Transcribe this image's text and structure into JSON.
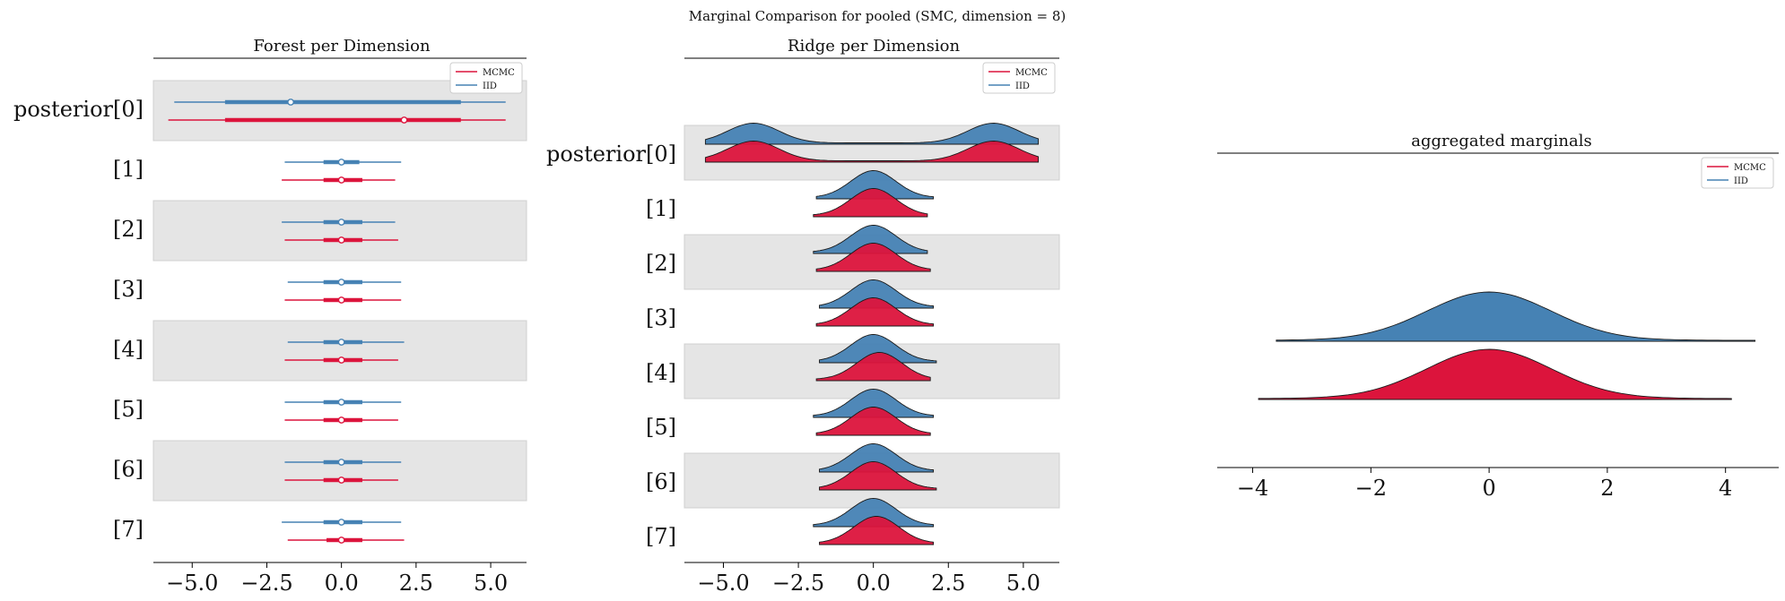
{
  "figure": {
    "suptitle": "Marginal Comparison for pooled (SMC, dimension = 8)"
  },
  "colors": {
    "mcmc": "#dc143c",
    "iid": "#4682b4",
    "band": "#e5e5e5"
  },
  "legend": {
    "mcmc_label": "MCMC",
    "iid_label": "IID"
  },
  "chart_data": [
    {
      "type": "forest",
      "title": "Forest per Dimension",
      "xlabel": "",
      "ylabel": "",
      "xlim": [
        -6.3,
        6.2
      ],
      "xticks": [
        -5.0,
        -2.5,
        0.0,
        2.5,
        5.0
      ],
      "xtick_labels": [
        "−5.0",
        "−2.5",
        "0.0",
        "2.5",
        "5.0"
      ],
      "legend_position": "top-right",
      "rows": [
        "posterior[0]",
        "[1]",
        "[2]",
        "[3]",
        "[4]",
        "[5]",
        "[6]",
        "[7]"
      ],
      "series": [
        {
          "name": "MCMC",
          "intervals": [
            {
              "hdi_low": -5.8,
              "hdi_high": 5.5,
              "iqr_low": -3.9,
              "iqr_high": 4.0,
              "point": 2.1
            },
            {
              "hdi_low": -2.0,
              "hdi_high": 1.8,
              "iqr_low": -0.6,
              "iqr_high": 0.7,
              "point": 0.0
            },
            {
              "hdi_low": -1.9,
              "hdi_high": 1.9,
              "iqr_low": -0.6,
              "iqr_high": 0.7,
              "point": 0.0
            },
            {
              "hdi_low": -1.9,
              "hdi_high": 2.0,
              "iqr_low": -0.6,
              "iqr_high": 0.7,
              "point": 0.0
            },
            {
              "hdi_low": -1.9,
              "hdi_high": 1.9,
              "iqr_low": -0.6,
              "iqr_high": 0.7,
              "point": 0.0
            },
            {
              "hdi_low": -1.9,
              "hdi_high": 1.9,
              "iqr_low": -0.6,
              "iqr_high": 0.7,
              "point": 0.0
            },
            {
              "hdi_low": -1.9,
              "hdi_high": 1.9,
              "iqr_low": -0.6,
              "iqr_high": 0.7,
              "point": 0.0
            },
            {
              "hdi_low": -1.8,
              "hdi_high": 2.1,
              "iqr_low": -0.5,
              "iqr_high": 0.7,
              "point": 0.0
            }
          ]
        },
        {
          "name": "IID",
          "intervals": [
            {
              "hdi_low": -5.6,
              "hdi_high": 5.5,
              "iqr_low": -3.9,
              "iqr_high": 4.0,
              "point": -1.7
            },
            {
              "hdi_low": -1.9,
              "hdi_high": 2.0,
              "iqr_low": -0.6,
              "iqr_high": 0.6,
              "point": 0.0
            },
            {
              "hdi_low": -2.0,
              "hdi_high": 1.8,
              "iqr_low": -0.6,
              "iqr_high": 0.7,
              "point": 0.0
            },
            {
              "hdi_low": -1.8,
              "hdi_high": 2.0,
              "iqr_low": -0.6,
              "iqr_high": 0.7,
              "point": 0.0
            },
            {
              "hdi_low": -1.8,
              "hdi_high": 2.1,
              "iqr_low": -0.6,
              "iqr_high": 0.7,
              "point": 0.0
            },
            {
              "hdi_low": -1.9,
              "hdi_high": 2.0,
              "iqr_low": -0.6,
              "iqr_high": 0.7,
              "point": 0.0
            },
            {
              "hdi_low": -1.9,
              "hdi_high": 2.0,
              "iqr_low": -0.6,
              "iqr_high": 0.7,
              "point": 0.0
            },
            {
              "hdi_low": -2.0,
              "hdi_high": 2.0,
              "iqr_low": -0.6,
              "iqr_high": 0.7,
              "point": 0.0
            }
          ]
        }
      ]
    },
    {
      "type": "ridge",
      "title": "Ridge per Dimension",
      "xlabel": "",
      "ylabel": "",
      "xlim": [
        -6.3,
        6.2
      ],
      "xticks": [
        -5.0,
        -2.5,
        0.0,
        2.5,
        5.0
      ],
      "xtick_labels": [
        "−5.0",
        "−2.5",
        "0.0",
        "2.5",
        "5.0"
      ],
      "legend_position": "top-right",
      "rows": [
        "posterior[0]",
        "[1]",
        "[2]",
        "[3]",
        "[4]",
        "[5]",
        "[6]",
        "[7]"
      ],
      "series": [
        {
          "name": "MCMC",
          "ranges": [
            [
              -5.6,
              5.5
            ],
            [
              -2.0,
              1.8
            ],
            [
              -1.9,
              1.9
            ],
            [
              -1.9,
              2.0
            ],
            [
              -1.9,
              1.9
            ],
            [
              -1.9,
              1.9
            ],
            [
              -1.8,
              2.1
            ],
            [
              -1.8,
              2.0
            ]
          ],
          "modes": [
            [
              -4.0,
              4.0
            ],
            [
              0.0
            ],
            [
              0.0
            ],
            [
              0.0
            ],
            [
              0.2
            ],
            [
              0.0
            ],
            [
              0.0
            ],
            [
              0.1
            ]
          ]
        },
        {
          "name": "IID",
          "ranges": [
            [
              -5.6,
              5.5
            ],
            [
              -1.9,
              2.0
            ],
            [
              -2.0,
              1.8
            ],
            [
              -1.8,
              2.0
            ],
            [
              -1.8,
              2.1
            ],
            [
              -2.0,
              2.0
            ],
            [
              -1.8,
              2.0
            ],
            [
              -2.0,
              2.0
            ]
          ],
          "modes": [
            [
              -4.0,
              4.0
            ],
            [
              0.0
            ],
            [
              0.0
            ],
            [
              0.0
            ],
            [
              0.0
            ],
            [
              0.0
            ],
            [
              0.0
            ],
            [
              0.0
            ]
          ]
        }
      ]
    },
    {
      "type": "ridge",
      "title": "aggregated marginals",
      "xlabel": "",
      "ylabel": "",
      "xlim": [
        -4.6,
        4.9
      ],
      "xticks": [
        -4,
        -2,
        0,
        2,
        4
      ],
      "xtick_labels": [
        "−4",
        "−2",
        "0",
        "2",
        "4"
      ],
      "legend_position": "top-right",
      "series": [
        {
          "name": "IID",
          "range": [
            -3.6,
            4.5
          ],
          "mode": 0.0
        },
        {
          "name": "MCMC",
          "range": [
            -3.9,
            4.1
          ],
          "mode": 0.0
        }
      ]
    }
  ]
}
